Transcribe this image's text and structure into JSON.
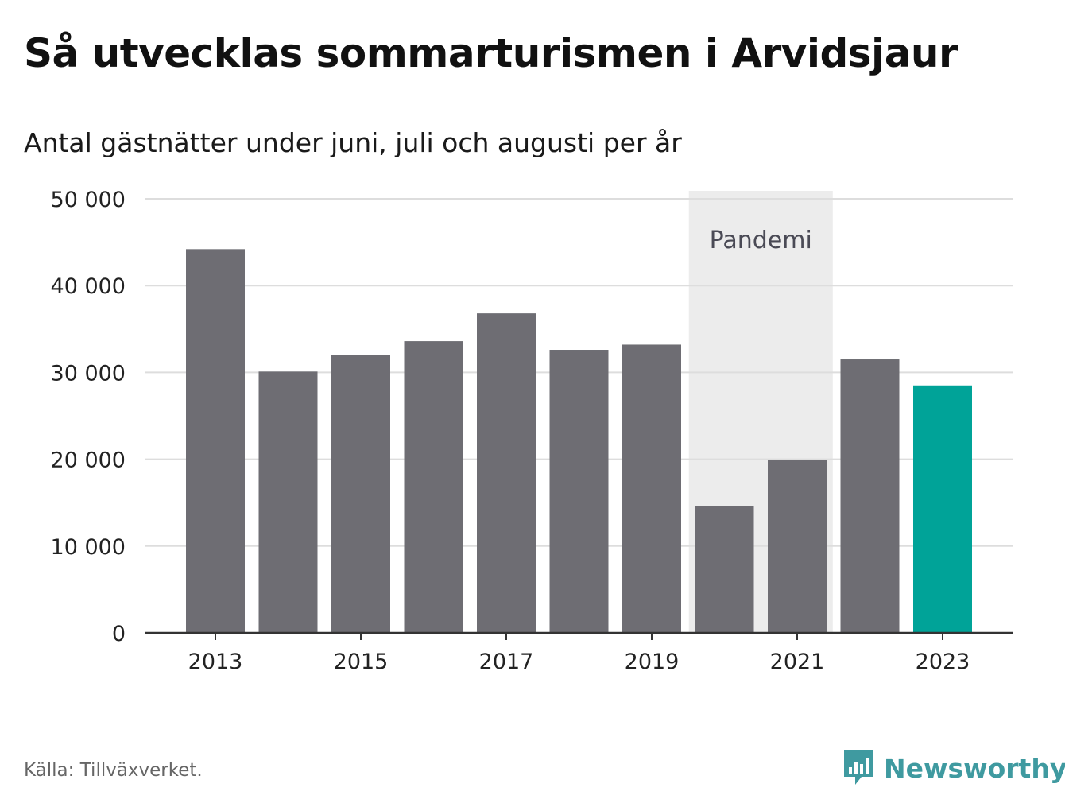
{
  "title": "Så utvecklas sommarturismen i Arvidsjaur",
  "subtitle": "Antal gästnätter under juni, juli och augusti per år",
  "source": "Källa: Tillväxverket.",
  "brand": {
    "name": "Newsworthy",
    "icon": "newsworthy-logo-icon",
    "color": "#3f9aa0"
  },
  "colors": {
    "bar": "#6e6d73",
    "highlight": "#00a398",
    "band": "#ececec",
    "grid": "#dddddd",
    "axis": "#333333"
  },
  "chart_data": {
    "type": "bar",
    "categories": [
      "2013",
      "2014",
      "2015",
      "2016",
      "2017",
      "2018",
      "2019",
      "2020",
      "2021",
      "2022",
      "2023"
    ],
    "values": [
      44200,
      30100,
      32000,
      33600,
      36800,
      32600,
      33200,
      14600,
      19900,
      31500,
      28500
    ],
    "highlight_category": "2023",
    "x_tick_labels": [
      "2013",
      "2015",
      "2017",
      "2019",
      "2021",
      "2023"
    ],
    "y_ticks": [
      0,
      10000,
      20000,
      30000,
      40000,
      50000
    ],
    "y_tick_labels": [
      "0",
      "10 000",
      "20 000",
      "30 000",
      "40 000",
      "50 000"
    ],
    "ylim": [
      0,
      50000
    ],
    "grid": true,
    "legend": "none",
    "annotations": [
      {
        "type": "band",
        "from": "2020",
        "to": "2021",
        "label": "Pandemi"
      }
    ]
  }
}
